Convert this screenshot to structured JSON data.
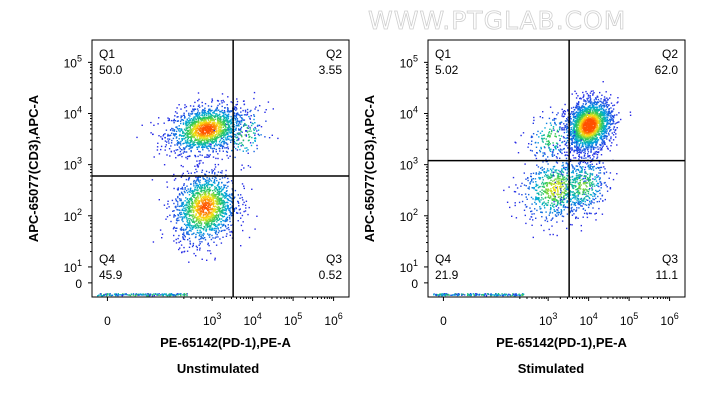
{
  "watermark": "WWW.PTGLAB.COM",
  "colors": {
    "density_low": "#1a1aff",
    "density_mid": "#22cc66",
    "density_high": "#ffee00",
    "density_peak": "#ff5500",
    "gate": "#000000"
  },
  "chart_data": [
    {
      "type": "scatter",
      "subtype": "flow-cytometry-density-dot-plot",
      "title": "Unstimulated",
      "xlabel": "PE-65142(PD-1),PE-A",
      "ylabel": "APC-65077(CD3),APC-A",
      "x_ticks": [
        "0",
        "10",
        "10",
        "10",
        "10",
        "10"
      ],
      "x_tick_exponents": [
        "",
        "",
        "3",
        "4",
        "5",
        "6"
      ],
      "y_ticks": [
        "0",
        "10",
        "10",
        "10",
        "10",
        "10"
      ],
      "y_tick_exponents": [
        "",
        "1",
        "2",
        "3",
        "4",
        "5"
      ],
      "gate": {
        "x_threshold": 3300,
        "y_threshold": 600
      },
      "quadrants": [
        {
          "name": "Q1",
          "percent": "50.0"
        },
        {
          "name": "Q2",
          "percent": "3.55"
        },
        {
          "name": "Q3",
          "percent": "0.52"
        },
        {
          "name": "Q4",
          "percent": "45.9"
        }
      ],
      "populations": [
        {
          "x_center": 700,
          "y_center": 5000,
          "x_spread": 0.45,
          "y_spread": 0.28,
          "weight": 0.5
        },
        {
          "x_center": 650,
          "y_center": 150,
          "x_spread": 0.38,
          "y_spread": 0.42,
          "weight": 0.46
        },
        {
          "x_center": 6000,
          "y_center": 4000,
          "x_spread": 0.3,
          "y_spread": 0.35,
          "weight": 0.04
        }
      ]
    },
    {
      "type": "scatter",
      "subtype": "flow-cytometry-density-dot-plot",
      "title": "Stimulated",
      "xlabel": "PE-65142(PD-1),PE-A",
      "ylabel": "APC-65077(CD3),APC-A",
      "x_ticks": [
        "0",
        "10",
        "10",
        "10",
        "10",
        "10"
      ],
      "x_tick_exponents": [
        "",
        "",
        "3",
        "4",
        "5",
        "6"
      ],
      "y_ticks": [
        "0",
        "10",
        "10",
        "10",
        "10",
        "10"
      ],
      "y_tick_exponents": [
        "",
        "1",
        "2",
        "3",
        "4",
        "5"
      ],
      "gate": {
        "x_threshold": 3300,
        "y_threshold": 1200
      },
      "quadrants": [
        {
          "name": "Q1",
          "percent": "5.02"
        },
        {
          "name": "Q2",
          "percent": "62.0"
        },
        {
          "name": "Q3",
          "percent": "11.1"
        },
        {
          "name": "Q4",
          "percent": "21.9"
        }
      ],
      "populations": [
        {
          "x_center": 10000,
          "y_center": 6000,
          "x_spread": 0.28,
          "y_spread": 0.3,
          "weight": 0.62
        },
        {
          "x_center": 1500,
          "y_center": 350,
          "x_spread": 0.42,
          "y_spread": 0.4,
          "weight": 0.22
        },
        {
          "x_center": 7000,
          "y_center": 400,
          "x_spread": 0.3,
          "y_spread": 0.35,
          "weight": 0.11
        },
        {
          "x_center": 1200,
          "y_center": 3500,
          "x_spread": 0.3,
          "y_spread": 0.3,
          "weight": 0.05
        }
      ]
    }
  ]
}
